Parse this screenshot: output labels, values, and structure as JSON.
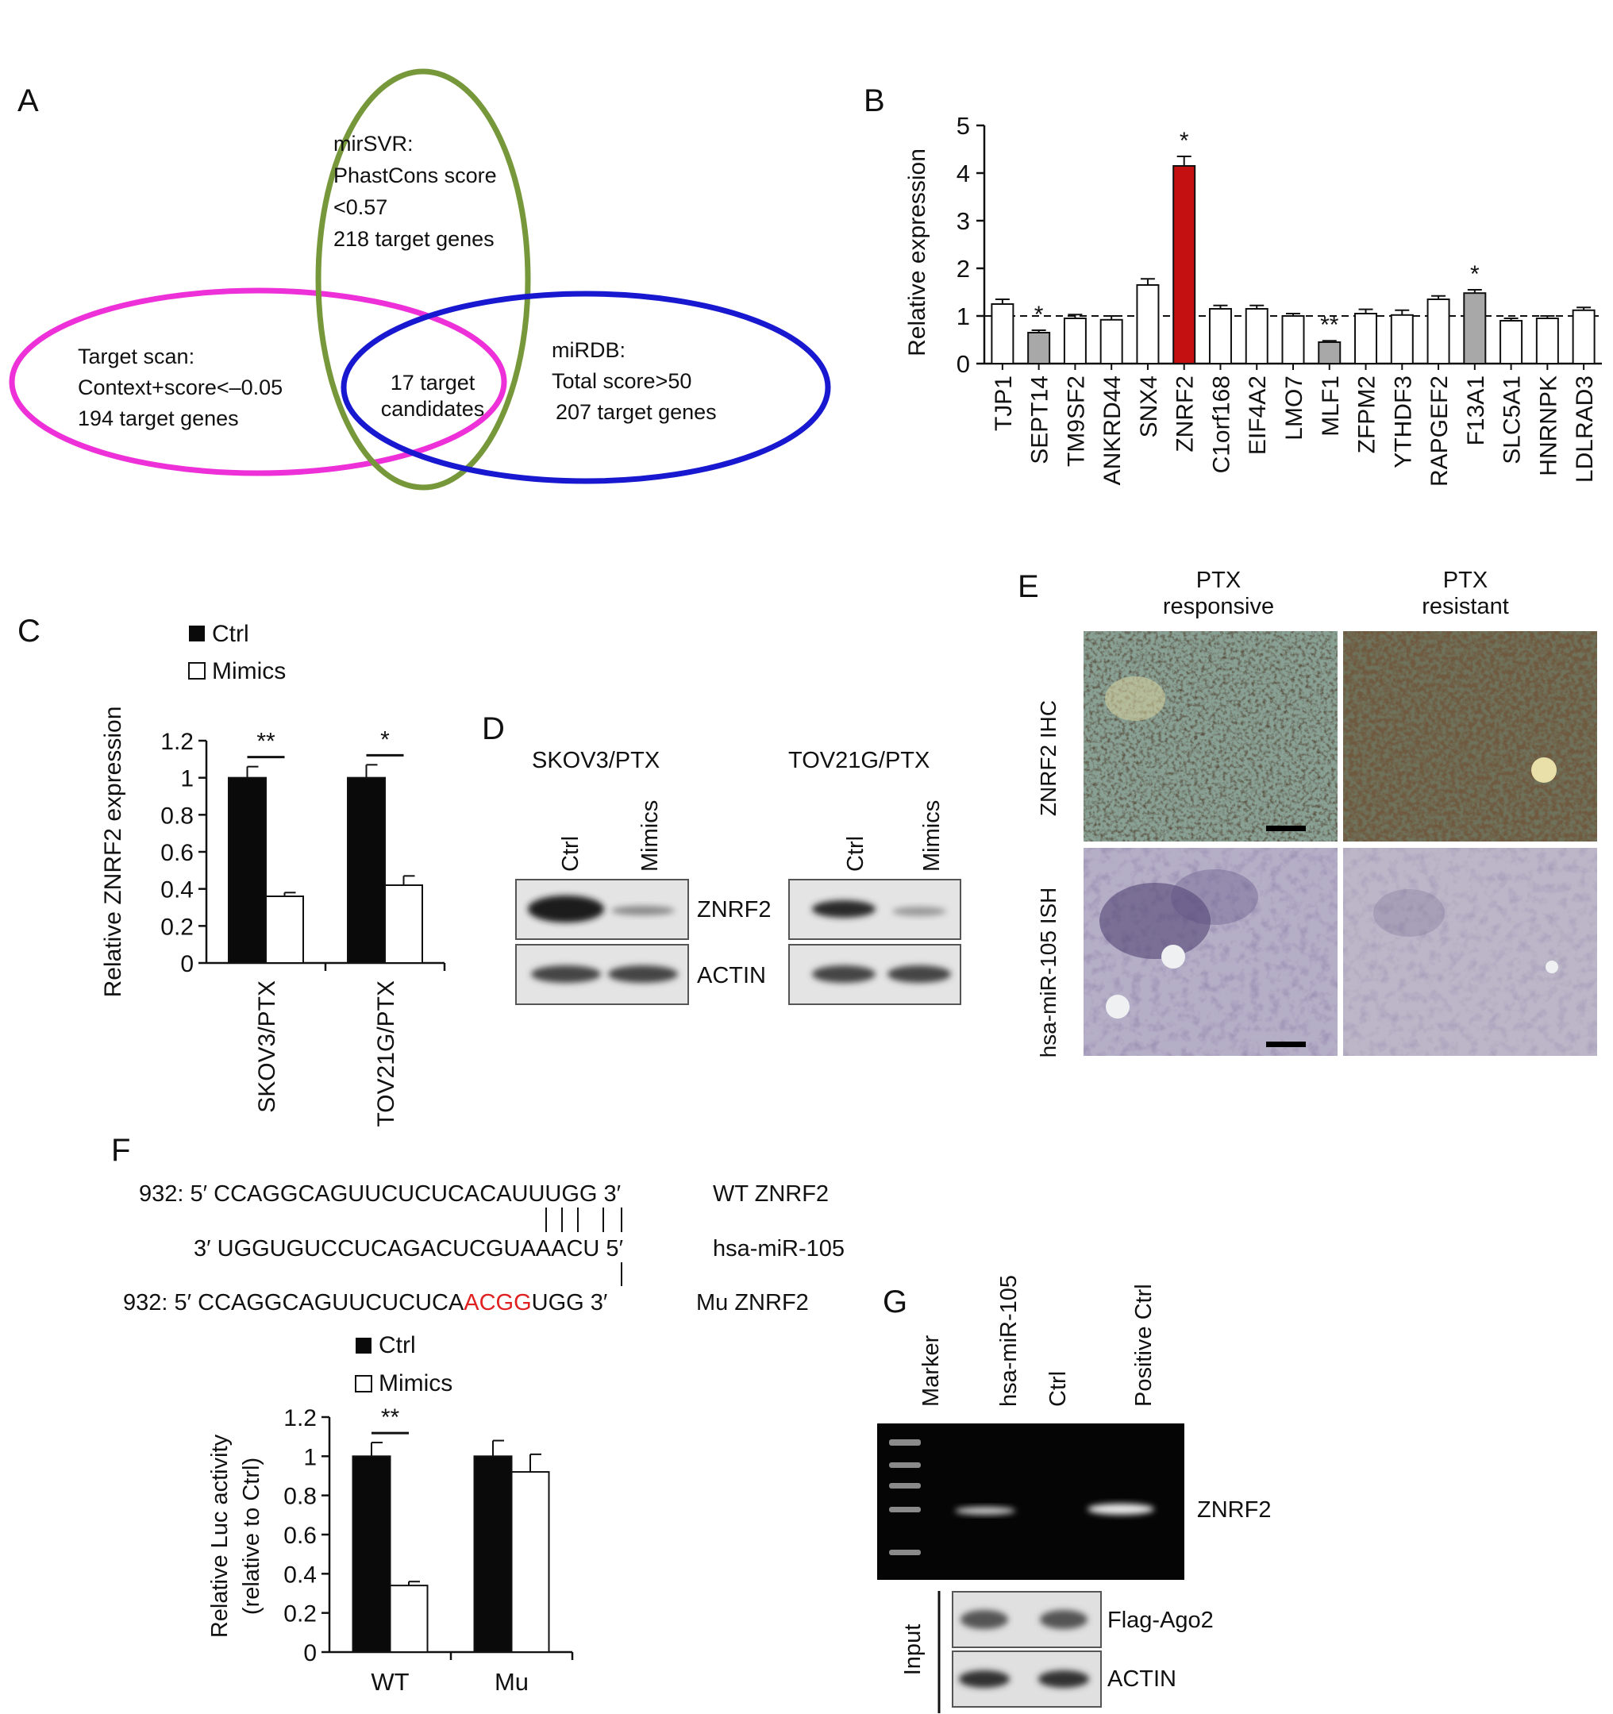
{
  "panels": {
    "A": "A",
    "B": "B",
    "C": "C",
    "D": "D",
    "E": "E",
    "F": "F",
    "G": "G"
  },
  "colors": {
    "venn_magenta": "#ee30d8",
    "venn_green": "#76973a",
    "venn_blue": "#1818d0",
    "highlight_red": "#c41010",
    "grey_bar": "#a8a8a8",
    "black_bar": "#0a0a0a",
    "mutation_red": "#e02020"
  },
  "venn": {
    "green": [
      "mirSVR:",
      "PhastCons score",
      "<0.57",
      "218 target genes"
    ],
    "magenta": [
      "Target scan:",
      "Context+score<–0.05",
      "194 target genes"
    ],
    "blue": [
      "miRDB:",
      "Total score>50",
      "207 target genes"
    ],
    "center": [
      "17 target",
      "candidates"
    ]
  },
  "legend": {
    "ctrl": "Ctrl",
    "mimics": "Mimics"
  },
  "chart_data": [
    {
      "panel": "B",
      "type": "bar",
      "ylabel": "Relative expression",
      "ylim": [
        0,
        5
      ],
      "yticks": [
        "0",
        "1",
        "2",
        "3",
        "4",
        "5"
      ],
      "reference_line": 1,
      "categories": [
        "TJP1",
        "SEPT14",
        "TM9SF2",
        "ANKRD44",
        "SNX4",
        "ZNRF2",
        "C1orf168",
        "EIF4A2",
        "LMO7",
        "MLF1",
        "ZFPM2",
        "YTHDF3",
        "RAPGEF2",
        "F13A1",
        "SLC5A1",
        "HNRNPK",
        "LDLRAD3"
      ],
      "values": [
        1.25,
        0.65,
        0.95,
        0.92,
        1.65,
        4.15,
        1.15,
        1.15,
        1.0,
        0.45,
        1.05,
        1.02,
        1.35,
        1.48,
        0.9,
        0.95,
        1.12
      ],
      "errors": [
        0.1,
        0.05,
        0.08,
        0.08,
        0.13,
        0.2,
        0.07,
        0.07,
        0.05,
        0.03,
        0.09,
        0.1,
        0.07,
        0.07,
        0.05,
        0.05,
        0.06
      ],
      "fill": [
        "white",
        "grey",
        "white",
        "white",
        "white",
        "red",
        "white",
        "white",
        "white",
        "grey",
        "white",
        "white",
        "white",
        "grey",
        "white",
        "white",
        "white"
      ],
      "significance": [
        "",
        "*",
        "",
        "",
        "",
        "*",
        "",
        "",
        "",
        "**",
        "",
        "",
        "",
        "*",
        "",
        "",
        ""
      ]
    },
    {
      "panel": "C",
      "type": "bar",
      "ylabel": "Relative ZNRF2 expression",
      "ylim": [
        0,
        1.2
      ],
      "yticks": [
        "0",
        "0.2",
        "0.4",
        "0.6",
        "0.8",
        "1",
        "1.2"
      ],
      "categories": [
        "SKOV3/PTX",
        "TOV21G/PTX"
      ],
      "series": [
        {
          "name": "Ctrl",
          "values": [
            1.0,
            1.0
          ],
          "errors": [
            0.06,
            0.07
          ]
        },
        {
          "name": "Mimics",
          "values": [
            0.36,
            0.42
          ],
          "errors": [
            0.02,
            0.05
          ]
        }
      ],
      "significance": [
        "**",
        "*"
      ]
    },
    {
      "panel": "F",
      "type": "bar",
      "ylabel": [
        "Relative Luc activity",
        "(relative to Ctrl)"
      ],
      "ylim": [
        0,
        1.2
      ],
      "yticks": [
        "0",
        "0.2",
        "0.4",
        "0.6",
        "0.8",
        "1",
        "1.2"
      ],
      "categories": [
        "WT",
        "Mu"
      ],
      "series": [
        {
          "name": "Ctrl",
          "values": [
            1.0,
            1.0
          ],
          "errors": [
            0.07,
            0.08
          ]
        },
        {
          "name": "Mimics",
          "values": [
            0.34,
            0.92
          ],
          "errors": [
            0.02,
            0.09
          ]
        }
      ],
      "significance": [
        "**",
        ""
      ]
    }
  ],
  "blot_D": {
    "left_title": "SKOV3/PTX",
    "right_title": "TOV21G/PTX",
    "lanes": [
      "Ctrl",
      "Mimics"
    ],
    "rows": [
      "ZNRF2",
      "ACTIN"
    ]
  },
  "panel_E": {
    "col1": [
      "PTX",
      "responsive"
    ],
    "col2": [
      "PTX",
      "resistant"
    ],
    "row1": "ZNRF2 IHC",
    "row2": "hsa-miR-105 ISH"
  },
  "seq_F": {
    "row1": {
      "prefix": "932: 5′ CCAGGCAGUUCUCUCACAUUUGG 3′",
      "label": "WT ZNRF2"
    },
    "row2": {
      "prefix": "3′ UGGUGUCCUCAGACUCGUAAACU 5′",
      "label": "hsa-miR-105"
    },
    "row3": {
      "a": "932:  5′ CCAGGCAGUUCUCUCA",
      "mut": "ACGG",
      "b": "UGG 3′",
      "label": "Mu ZNRF2"
    }
  },
  "gel_G": {
    "lanes": [
      "Marker",
      "hsa-miR-105",
      "Ctrl",
      "Positive Ctrl"
    ],
    "band_label": "ZNRF2",
    "input_label": "Input",
    "input_rows": [
      "Flag-Ago2",
      "ACTIN"
    ]
  }
}
